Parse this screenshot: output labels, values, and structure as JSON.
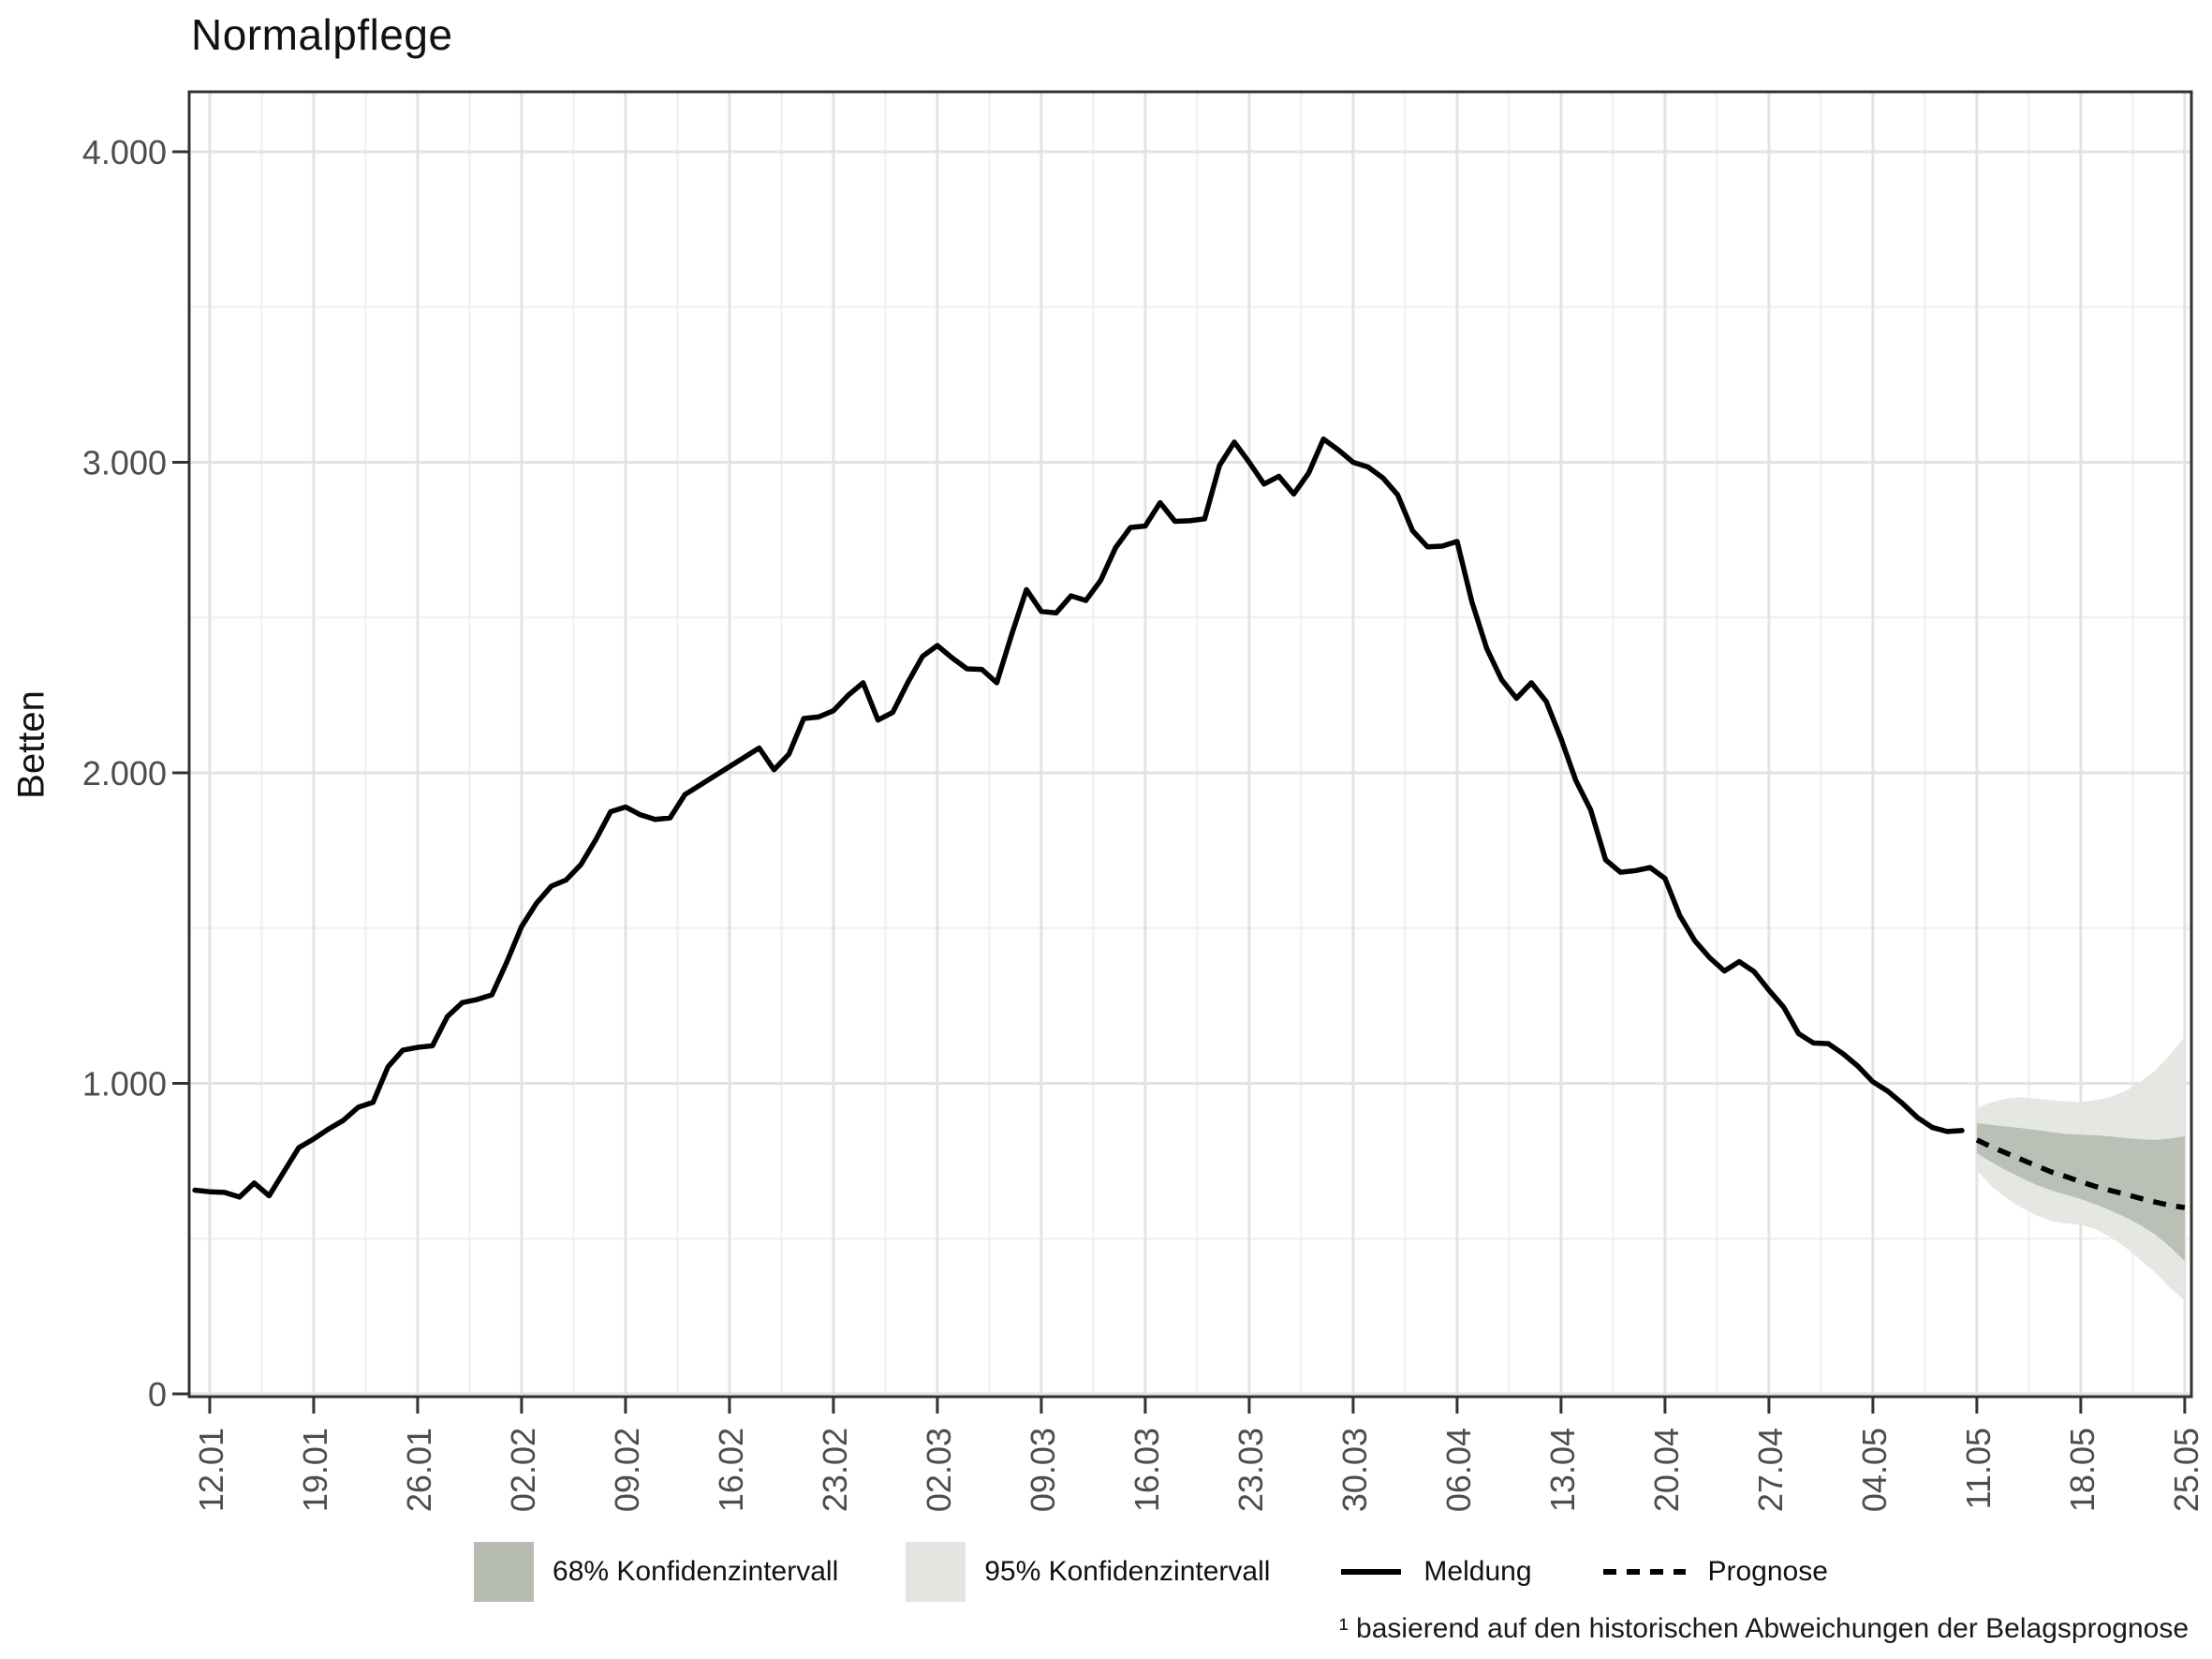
{
  "title": "Normalpflege",
  "ylabel": "Betten",
  "legend": {
    "ci68_label": "68% Konfidenzintervall",
    "ci95_label": "95% Konfidenzintervall",
    "meldung_label": "Meldung",
    "prognose_label": "Prognose"
  },
  "footnote": "¹ basierend auf den historischen Abweichungen der Belagsprognose",
  "colors": {
    "ci68": "#b7bcb2",
    "ci95": "#e3e5e1",
    "line": "#000000",
    "grid_major": "#e3e3e3",
    "grid_minor": "#efefef",
    "axis": "#333333",
    "tick_text": "#4d4d4d"
  },
  "chart_data": {
    "type": "line",
    "title": "Normalpflege",
    "xlabel": "",
    "ylabel": "Betten",
    "ylim": [
      0,
      4190
    ],
    "grid": true,
    "legend_position": "bottom",
    "y_tick_labels": [
      "0",
      "1.000",
      "2.000",
      "3.000",
      "4.000"
    ],
    "y_tick_values": [
      0,
      1000,
      2000,
      3000,
      4000
    ],
    "y_minor_values": [
      500,
      1500,
      2500,
      3500
    ],
    "x_tick_labels": [
      "12.01",
      "19.01",
      "26.01",
      "02.02",
      "09.02",
      "16.02",
      "23.02",
      "02.03",
      "09.03",
      "16.03",
      "23.03",
      "30.03",
      "06.04",
      "13.04",
      "20.04",
      "27.04",
      "04.05",
      "11.05",
      "18.05",
      "25.05"
    ],
    "meldung": {
      "start_date": "11.01",
      "values": [
        656,
        651,
        649,
        634,
        679,
        638,
        716,
        793,
        821,
        853,
        881,
        923,
        939,
        1053,
        1107,
        1116,
        1121,
        1215,
        1260,
        1270,
        1285,
        1390,
        1505,
        1580,
        1635,
        1655,
        1705,
        1785,
        1875,
        1890,
        1865,
        1850,
        1855,
        1930,
        1960,
        1990,
        2020,
        2050,
        2080,
        2010,
        2060,
        2175,
        2180,
        2200,
        2250,
        2290,
        2170,
        2195,
        2290,
        2375,
        2410,
        2370,
        2335,
        2333,
        2290,
        2445,
        2590,
        2520,
        2515,
        2570,
        2555,
        2620,
        2725,
        2790,
        2795,
        2870,
        2810,
        2812,
        2818,
        2990,
        3065,
        3000,
        2930,
        2955,
        2898,
        2965,
        3075,
        3040,
        3000,
        2985,
        2950,
        2895,
        2780,
        2728,
        2730,
        2745,
        2550,
        2400,
        2300,
        2240,
        2290,
        2230,
        2110,
        1975,
        1880,
        1720,
        1680,
        1685,
        1695,
        1660,
        1540,
        1460,
        1405,
        1362,
        1392,
        1360,
        1300,
        1245,
        1160,
        1130,
        1128,
        1095,
        1055,
        1005,
        975,
        935,
        890,
        858,
        845,
        848
      ]
    },
    "prognose": {
      "start_date": "11.05",
      "start_day": 120,
      "values": [
        818,
        795,
        775,
        755,
        735,
        715,
        700,
        683,
        668,
        655,
        643,
        630,
        618,
        607,
        600
      ]
    },
    "ci68": {
      "start_day": 120,
      "upper": [
        872,
        866,
        861,
        856,
        850,
        843,
        837,
        835,
        833,
        829,
        824,
        820,
        818,
        822,
        830
      ],
      "lower": [
        775,
        746,
        719,
        696,
        673,
        656,
        641,
        628,
        610,
        591,
        569,
        544,
        514,
        474,
        428
      ]
    },
    "ci95": {
      "start_day": 120,
      "upper": [
        920,
        940,
        951,
        955,
        951,
        946,
        942,
        940,
        946,
        956,
        975,
        1005,
        1040,
        1092,
        1150
      ],
      "lower": [
        720,
        668,
        630,
        600,
        575,
        557,
        549,
        545,
        530,
        505,
        472,
        432,
        392,
        342,
        300
      ]
    }
  }
}
